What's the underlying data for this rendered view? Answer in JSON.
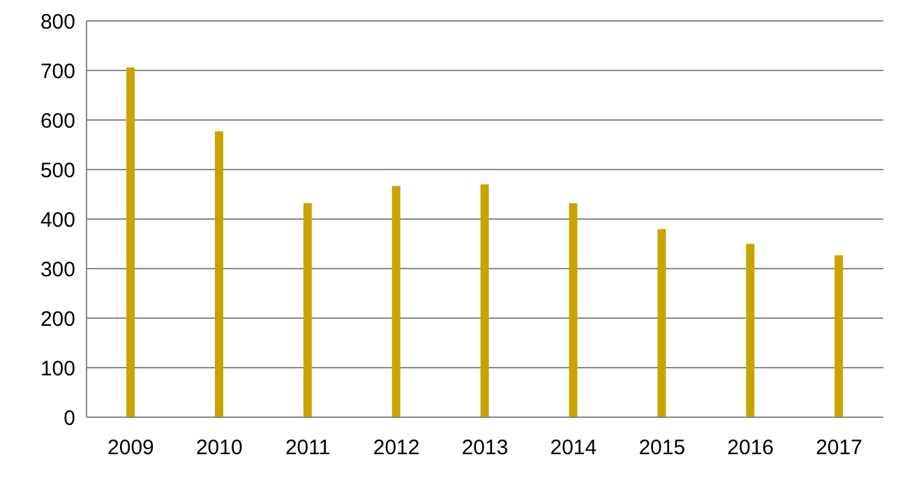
{
  "chart_data": {
    "type": "bar",
    "categories": [
      "2009",
      "2010",
      "2011",
      "2012",
      "2013",
      "2014",
      "2015",
      "2016",
      "2017"
    ],
    "values": [
      706,
      577,
      432,
      467,
      470,
      432,
      380,
      350,
      327
    ],
    "color": "#c9a400",
    "ylim": [
      0,
      800
    ],
    "yticks": [
      0,
      100,
      200,
      300,
      400,
      500,
      600,
      700,
      800
    ],
    "grid": "y",
    "legend": false
  }
}
